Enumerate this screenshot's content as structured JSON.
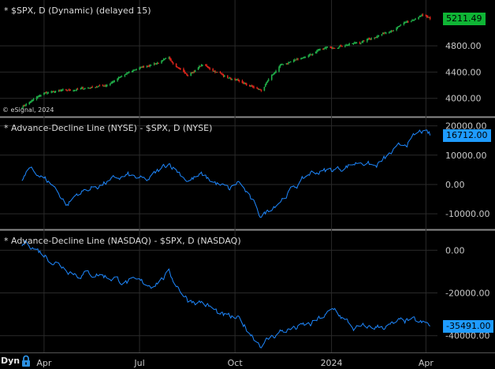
{
  "footer": {
    "mode": "Dyn",
    "lock_icon": "lock-icon"
  },
  "colors": {
    "background": "#000000",
    "up_candle": "#21b24b",
    "down_candle": "#e3261c",
    "ad_line": "#1e88ff",
    "grid": "#2a2a2a",
    "separator": "#8a8a8a",
    "axis_text": "#c8c8c8",
    "price_box": "#0fb535",
    "ad_box": "#1e9bff"
  },
  "chart_data": [
    {
      "type": "candlestick",
      "title": "* $SPX, D (Dynamic) (delayed 15)",
      "copyright": "© eSignal, 2024",
      "last_value_label": "5211.49",
      "last_value": 5211.49,
      "yticks": [
        "4800.00",
        "4400.00",
        "4000.00"
      ],
      "ytick_values": [
        4800,
        4400,
        4000
      ],
      "ylim": [
        3780,
        5450
      ],
      "series": {
        "x": [
          "2023-03-13",
          "2023-04-03",
          "2023-05-01",
          "2023-06-01",
          "2023-06-30",
          "2023-07-31",
          "2023-08-18",
          "2023-09-01",
          "2023-09-29",
          "2023-10-27",
          "2023-11-14",
          "2023-12-01",
          "2023-12-29",
          "2024-01-31",
          "2024-02-29",
          "2024-03-28",
          "2024-04-05"
        ],
        "y": [
          3870,
          4080,
          4130,
          4200,
          4450,
          4600,
          4350,
          4510,
          4290,
          4120,
          4500,
          4600,
          4770,
          4860,
          5050,
          5250,
          5211
        ]
      }
    },
    {
      "type": "line",
      "title": "* Advance-Decline Line (NYSE) - $SPX, D (NYSE)",
      "last_value_label": "16712.00",
      "last_value": 16712,
      "yticks": [
        "20000.00",
        "10000.00",
        "0.00",
        "-10000.00"
      ],
      "ytick_values": [
        20000,
        10000,
        0,
        -10000
      ],
      "ylim": [
        -14000,
        21500
      ],
      "series": {
        "x": [
          "2023-03-13",
          "2023-03-22",
          "2023-04-12",
          "2023-04-25",
          "2023-05-05",
          "2023-05-31",
          "2023-06-22",
          "2023-07-10",
          "2023-07-31",
          "2023-08-18",
          "2023-08-31",
          "2023-09-27",
          "2023-10-06",
          "2023-10-27",
          "2023-11-08",
          "2023-12-01",
          "2023-12-13",
          "2024-01-05",
          "2024-01-31",
          "2024-02-13",
          "2024-03-01",
          "2024-03-28",
          "2024-04-05"
        ],
        "y": [
          1500,
          5500,
          -400,
          -7000,
          -3000,
          500,
          3000,
          1000,
          7500,
          1500,
          3000,
          -2000,
          1000,
          -11000,
          -7000,
          0,
          4000,
          5000,
          8000,
          6000,
          11000,
          18000,
          16712
        ]
      }
    },
    {
      "type": "line",
      "title": "* Advance-Decline Line (NASDAQ) - $SPX, D (NASDAQ)",
      "last_value_label": "-35491.00",
      "last_value": -35491,
      "yticks": [
        "0.00",
        "-20000.00",
        "-40000.00"
      ],
      "ytick_values": [
        0,
        -20000,
        -40000
      ],
      "ylim": [
        -46000,
        7500
      ],
      "series": {
        "x": [
          "2023-03-13",
          "2023-03-17",
          "2023-04-12",
          "2023-05-05",
          "2023-05-24",
          "2023-06-22",
          "2023-07-14",
          "2023-07-31",
          "2023-08-18",
          "2023-08-31",
          "2023-09-20",
          "2023-10-06",
          "2023-10-27",
          "2023-11-14",
          "2023-12-13",
          "2024-01-05",
          "2024-01-24",
          "2024-02-13",
          "2024-03-01",
          "2024-03-15",
          "2024-04-05"
        ],
        "y": [
          2000,
          4000,
          -5000,
          -11000,
          -11000,
          -15000,
          -16000,
          -11000,
          -23000,
          -24000,
          -31000,
          -33000,
          -44000,
          -38000,
          -35000,
          -28000,
          -37000,
          -36000,
          -35000,
          -33000,
          -35491
        ]
      }
    }
  ],
  "time_axis": {
    "labels": [
      "Apr",
      "Jul",
      "Oct",
      "2024",
      "Apr"
    ],
    "label_dates": [
      "2023-04-03",
      "2023-07-03",
      "2023-10-02",
      "2024-01-02",
      "2024-04-01"
    ],
    "range": [
      "2023-02-20",
      "2024-04-12"
    ]
  }
}
